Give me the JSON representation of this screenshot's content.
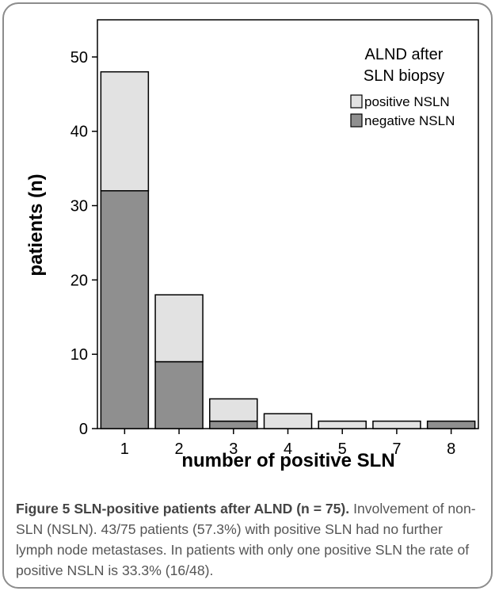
{
  "chart_data": {
    "type": "bar",
    "stacked": true,
    "categories": [
      "1",
      "2",
      "3",
      "4",
      "5",
      "7",
      "8"
    ],
    "series": [
      {
        "name": "negative NSLN",
        "color": "#8f8f8f",
        "values": [
          32,
          9,
          1,
          0,
          0,
          0,
          1
        ]
      },
      {
        "name": "positive NSLN",
        "color": "#e2e2e2",
        "values": [
          16,
          9,
          3,
          2,
          1,
          1,
          0
        ]
      }
    ],
    "xlabel": "number of positive SLN",
    "ylabel": "patients (n)",
    "ylim": [
      0,
      55
    ],
    "yticks": [
      0,
      10,
      20,
      30,
      40,
      50
    ],
    "grid": false,
    "legend": {
      "title_line1": "ALND after",
      "title_line2": "SLN biopsy",
      "placement": "top-right"
    }
  },
  "caption": {
    "title": "Figure 5 SLN-positive patients after ALND (n = 75).",
    "text": " Involvement of non-SLN (NSLN). 43/75 patients (57.3%) with positive SLN had no further lymph node metastases. In patients with only one positive SLN the rate of positive NSLN is 33.3% (16/48)."
  }
}
